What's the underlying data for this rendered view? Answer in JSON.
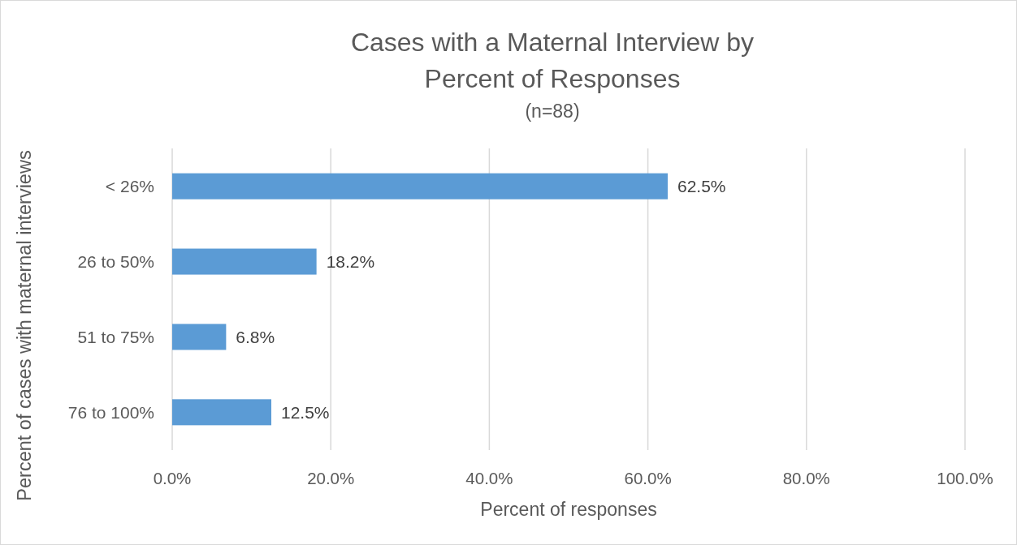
{
  "chart_data": {
    "type": "bar",
    "orientation": "horizontal",
    "title": "Cases with a Maternal Interview by Percent of Responses",
    "subtitle": "(n=88)",
    "xlabel": "Percent of responses",
    "ylabel": "Percent of cases with maternal interviews",
    "categories": [
      "< 26%",
      "26 to 50%",
      "51 to 75%",
      "76 to 100%"
    ],
    "values": [
      62.5,
      18.2,
      6.8,
      12.5
    ],
    "value_labels": [
      "62.5%",
      "18.2%",
      "6.8%",
      "12.5%"
    ],
    "color": "#5b9bd5",
    "xlim": [
      0,
      100
    ],
    "xticks": [
      {
        "value": 0,
        "label": "0.0%"
      },
      {
        "value": 20,
        "label": "20.0%"
      },
      {
        "value": 40,
        "label": "40.0%"
      },
      {
        "value": 60,
        "label": "60.0%"
      },
      {
        "value": 80,
        "label": "80.0%"
      },
      {
        "value": 100,
        "label": "100.0%"
      }
    ],
    "grid": "x"
  }
}
